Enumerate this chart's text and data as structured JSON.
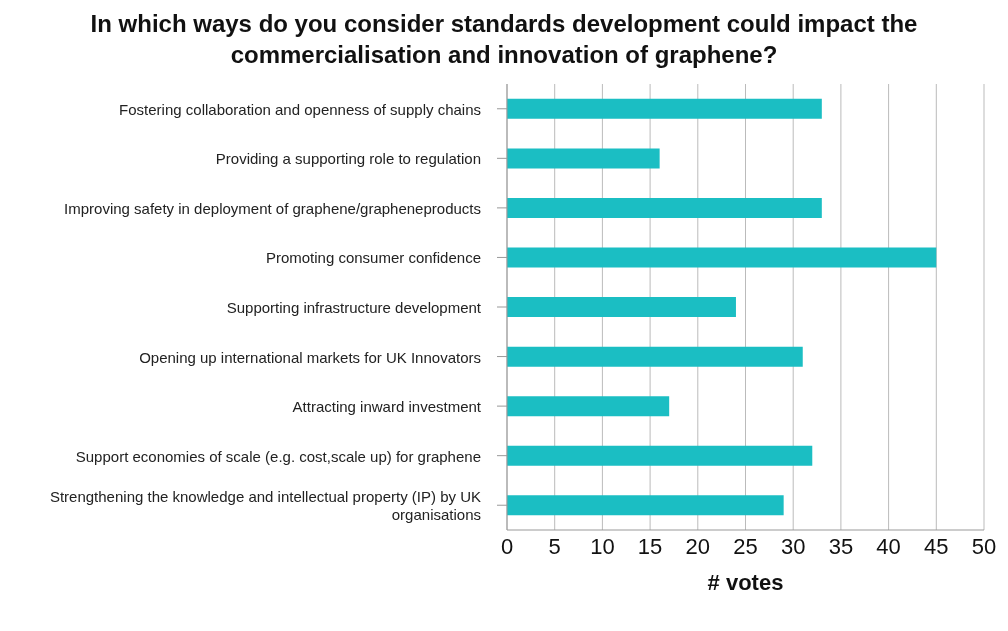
{
  "chart_data": {
    "type": "bar",
    "orientation": "horizontal",
    "title": "In which ways do you consider standards development could impact the commercialisation and innovation of graphene?",
    "xlabel": "# votes",
    "categories": [
      "Fostering collaboration and openness of supply chains",
      "Providing a supporting role to regulation",
      "Improving safety in deployment of graphene/grapheneproducts",
      "Promoting consumer confidence",
      "Supporting infrastructure development",
      "Opening up international markets for UK Innovators",
      "Attracting inward investment",
      "Support economies of scale (e.g. cost,scale up) for graphene",
      "Strengthening the knowledge and intellectual property (IP) by UK organisations"
    ],
    "values": [
      33,
      16,
      33,
      45,
      24,
      31,
      17,
      32,
      29
    ],
    "color": "#1bbec3",
    "xlim": [
      0,
      50
    ],
    "xticks": [
      0,
      5,
      10,
      15,
      20,
      25,
      30,
      35,
      40,
      45,
      50
    ],
    "grid": "x",
    "legend": false
  }
}
